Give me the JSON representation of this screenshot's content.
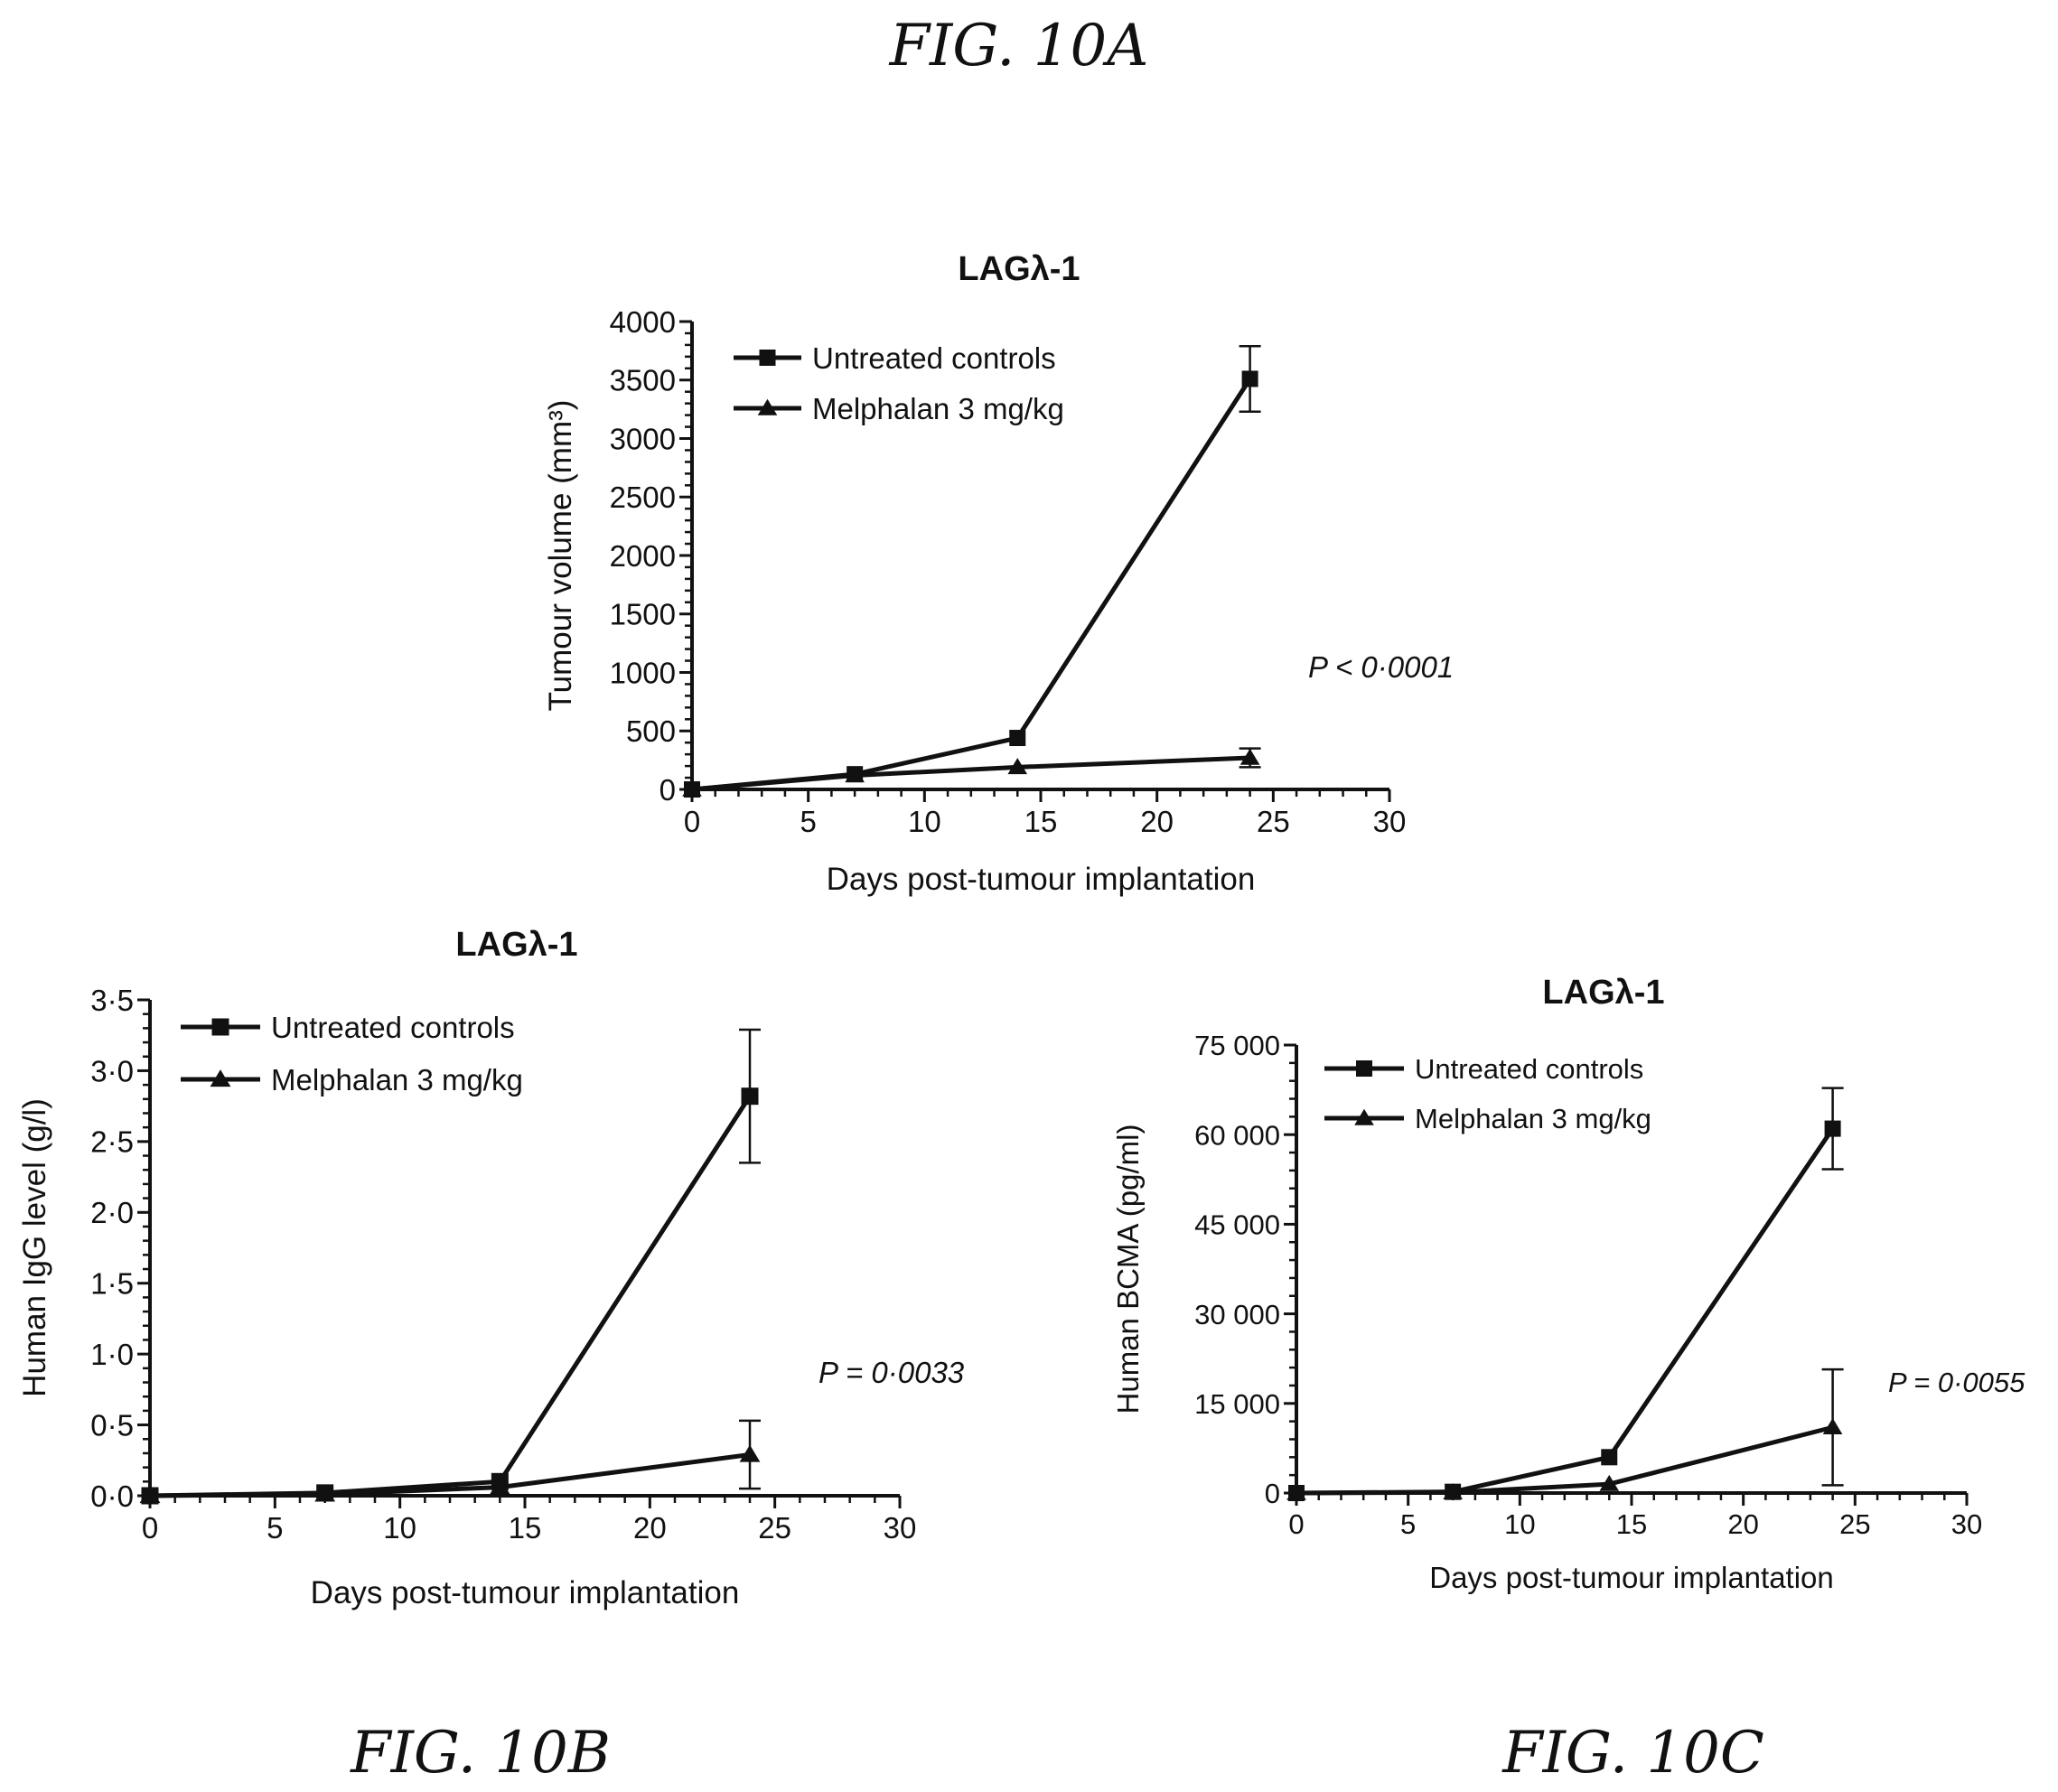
{
  "figure_labels": {
    "a": "FIG. 10A",
    "b": "FIG. 10B",
    "c": "FIG. 10C"
  },
  "legend": {
    "series1": "Untreated controls",
    "series2": "Melphalan 3 mg/kg"
  },
  "chart_data": [
    {
      "id": "fig10a",
      "type": "line",
      "title": "LAGλ-1",
      "xlabel": "Days post-tumour implantation",
      "ylabel": "Tumour volume (mm³)",
      "xlim": [
        0,
        30
      ],
      "ylim": [
        0,
        4000
      ],
      "xticks": [
        "0",
        "5",
        "10",
        "15",
        "20",
        "25",
        "30"
      ],
      "yticks": [
        "0",
        "500",
        "1000",
        "1500",
        "2000",
        "2500",
        "3000",
        "3500",
        "4000"
      ],
      "annotation": "P < 0·0001",
      "legend_position": "top-left",
      "grid": false,
      "series": [
        {
          "name": "Untreated controls",
          "marker": "square",
          "x": [
            0,
            7,
            14,
            24
          ],
          "y": [
            0,
            130,
            440,
            3510
          ],
          "err": [
            0,
            0,
            0,
            280
          ]
        },
        {
          "name": "Melphalan 3 mg/kg",
          "marker": "triangle",
          "x": [
            0,
            7,
            14,
            24
          ],
          "y": [
            0,
            120,
            190,
            270
          ],
          "err": [
            0,
            0,
            0,
            80
          ]
        }
      ]
    },
    {
      "id": "fig10b",
      "type": "line",
      "title": "LAGλ-1",
      "xlabel": "Days post-tumour implantation",
      "ylabel": "Human IgG level (g/l)",
      "xlim": [
        0,
        30
      ],
      "ylim": [
        0,
        3.5
      ],
      "xticks": [
        "0",
        "5",
        "10",
        "15",
        "20",
        "25",
        "30"
      ],
      "yticks": [
        "0·0",
        "0·5",
        "1·0",
        "1·5",
        "2·0",
        "2·5",
        "3·0",
        "3·5"
      ],
      "annotation": "P = 0·0033",
      "legend_position": "top-left",
      "grid": false,
      "series": [
        {
          "name": "Untreated controls",
          "marker": "square",
          "x": [
            0,
            7,
            14,
            24
          ],
          "y": [
            0,
            0.02,
            0.1,
            2.82
          ],
          "err": [
            0,
            0,
            0,
            0.47
          ]
        },
        {
          "name": "Melphalan 3 mg/kg",
          "marker": "triangle",
          "x": [
            0,
            7,
            14,
            24
          ],
          "y": [
            0,
            0.01,
            0.06,
            0.29
          ],
          "err": [
            0,
            0,
            0,
            0.24
          ]
        }
      ]
    },
    {
      "id": "fig10c",
      "type": "line",
      "title": "LAGλ-1",
      "xlabel": "Days post-tumour implantation",
      "ylabel": "Human BCMA (pg/ml)",
      "xlim": [
        0,
        30
      ],
      "ylim": [
        0,
        75000
      ],
      "xticks": [
        "0",
        "5",
        "10",
        "15",
        "20",
        "25",
        "30"
      ],
      "yticks": [
        "0",
        "15 000",
        "30 000",
        "45 000",
        "60 000",
        "75 000"
      ],
      "annotation": "P = 0·0055",
      "legend_position": "top-left",
      "grid": false,
      "series": [
        {
          "name": "Untreated controls",
          "marker": "square",
          "x": [
            0,
            7,
            14,
            24
          ],
          "y": [
            0,
            200,
            6000,
            61000
          ],
          "err": [
            0,
            0,
            0,
            6800
          ]
        },
        {
          "name": "Melphalan 3 mg/kg",
          "marker": "triangle",
          "x": [
            0,
            7,
            14,
            24
          ],
          "y": [
            0,
            100,
            1500,
            11000
          ],
          "err": [
            0,
            0,
            0,
            9700
          ]
        }
      ]
    }
  ]
}
